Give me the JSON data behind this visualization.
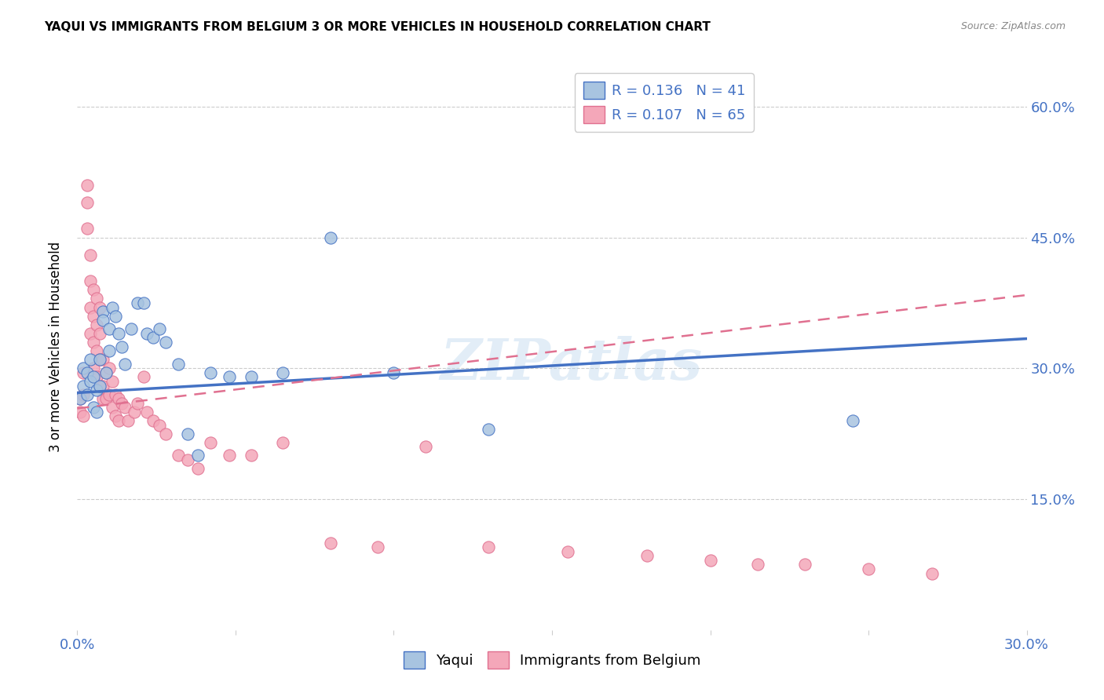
{
  "title": "YAQUI VS IMMIGRANTS FROM BELGIUM 3 OR MORE VEHICLES IN HOUSEHOLD CORRELATION CHART",
  "source": "Source: ZipAtlas.com",
  "ylabel": "3 or more Vehicles in Household",
  "x_min": 0.0,
  "x_max": 0.3,
  "y_min": 0.0,
  "y_max": 0.65,
  "color_yaqui_fill": "#a8c4e0",
  "color_yaqui_edge": "#4472c4",
  "color_belgium_fill": "#f4a7b9",
  "color_belgium_edge": "#e07090",
  "color_line_yaqui": "#4472c4",
  "color_line_belgium": "#e07090",
  "color_text_blue": "#4472c4",
  "watermark": "ZIPatlas",
  "yaqui_x": [
    0.001,
    0.002,
    0.002,
    0.003,
    0.003,
    0.004,
    0.004,
    0.005,
    0.005,
    0.006,
    0.006,
    0.007,
    0.007,
    0.008,
    0.008,
    0.009,
    0.01,
    0.01,
    0.011,
    0.012,
    0.013,
    0.014,
    0.015,
    0.017,
    0.019,
    0.021,
    0.022,
    0.024,
    0.026,
    0.028,
    0.032,
    0.035,
    0.038,
    0.042,
    0.048,
    0.055,
    0.065,
    0.08,
    0.1,
    0.13,
    0.245
  ],
  "yaqui_y": [
    0.265,
    0.3,
    0.28,
    0.295,
    0.27,
    0.31,
    0.285,
    0.29,
    0.255,
    0.275,
    0.25,
    0.31,
    0.28,
    0.365,
    0.355,
    0.295,
    0.345,
    0.32,
    0.37,
    0.36,
    0.34,
    0.325,
    0.305,
    0.345,
    0.375,
    0.375,
    0.34,
    0.335,
    0.345,
    0.33,
    0.305,
    0.225,
    0.2,
    0.295,
    0.29,
    0.29,
    0.295,
    0.45,
    0.295,
    0.23,
    0.24
  ],
  "belgium_x": [
    0.001,
    0.001,
    0.002,
    0.002,
    0.002,
    0.003,
    0.003,
    0.003,
    0.004,
    0.004,
    0.004,
    0.004,
    0.005,
    0.005,
    0.005,
    0.005,
    0.006,
    0.006,
    0.006,
    0.006,
    0.007,
    0.007,
    0.007,
    0.007,
    0.008,
    0.008,
    0.008,
    0.009,
    0.009,
    0.01,
    0.01,
    0.011,
    0.011,
    0.012,
    0.012,
    0.013,
    0.013,
    0.014,
    0.015,
    0.016,
    0.018,
    0.019,
    0.021,
    0.022,
    0.024,
    0.026,
    0.028,
    0.032,
    0.035,
    0.038,
    0.042,
    0.048,
    0.055,
    0.065,
    0.08,
    0.095,
    0.11,
    0.13,
    0.155,
    0.18,
    0.2,
    0.215,
    0.23,
    0.25,
    0.27
  ],
  "belgium_y": [
    0.265,
    0.25,
    0.295,
    0.27,
    0.245,
    0.51,
    0.49,
    0.46,
    0.43,
    0.4,
    0.37,
    0.34,
    0.39,
    0.36,
    0.33,
    0.3,
    0.38,
    0.35,
    0.32,
    0.29,
    0.37,
    0.34,
    0.31,
    0.28,
    0.31,
    0.28,
    0.265,
    0.295,
    0.265,
    0.3,
    0.27,
    0.285,
    0.255,
    0.27,
    0.245,
    0.265,
    0.24,
    0.26,
    0.255,
    0.24,
    0.25,
    0.26,
    0.29,
    0.25,
    0.24,
    0.235,
    0.225,
    0.2,
    0.195,
    0.185,
    0.215,
    0.2,
    0.2,
    0.215,
    0.1,
    0.095,
    0.21,
    0.095,
    0.09,
    0.085,
    0.08,
    0.075,
    0.075,
    0.07,
    0.065
  ],
  "yaqui_line_x0": 0.0,
  "yaqui_line_y0": 0.272,
  "yaqui_line_x1": 0.3,
  "yaqui_line_y1": 0.334,
  "belgium_line_x0": 0.0,
  "belgium_line_y0": 0.254,
  "belgium_line_x1": 0.3,
  "belgium_line_y1": 0.384
}
